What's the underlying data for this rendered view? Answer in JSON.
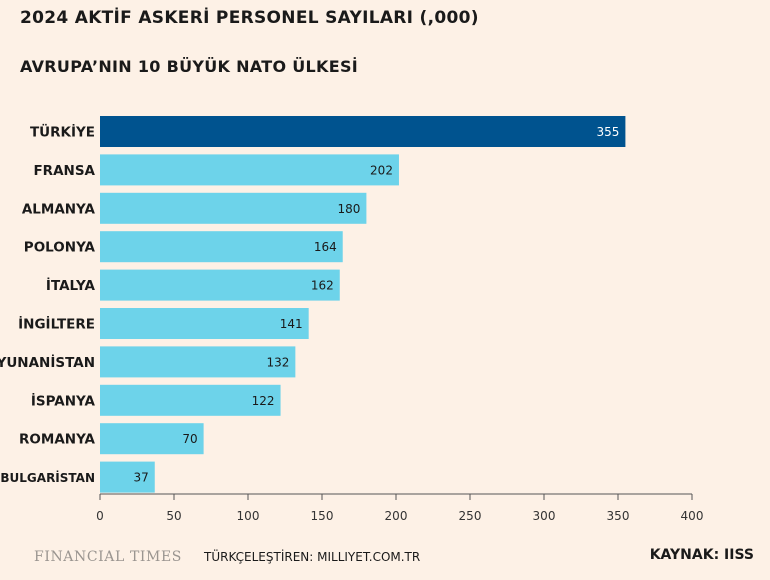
{
  "header": {
    "title": "2024 AKTİF ASKERİ PERSONEL SAYILARI (,000)",
    "subtitle": "AVRUPA’NIN 10 BÜYÜK NATO ÜLKESİ"
  },
  "colors": {
    "background": "#fdf1e6",
    "highlight_bar": "#00538f",
    "bar": "#6dd3ea",
    "axis": "#555555"
  },
  "chart_data": {
    "type": "bar",
    "orientation": "horizontal",
    "categories": [
      "TÜRKİYE",
      "FRANSA",
      "ALMANYA",
      "POLONYA",
      "İTALYA",
      "İNGİLTERE",
      "YUNANİSTAN",
      "İSPANYA",
      "ROMANYA",
      "BULGARİSTAN"
    ],
    "values": [
      355,
      202,
      180,
      164,
      162,
      141,
      132,
      122,
      70,
      37
    ],
    "highlight": "TÜRKİYE",
    "xlim": [
      0,
      400
    ],
    "xticks": [
      0,
      50,
      100,
      150,
      200,
      250,
      300,
      350,
      400
    ],
    "grid": false
  },
  "footer": {
    "publisher": "FINANCIAL TIMES",
    "credit": "TÜRKÇELEŞTİREN: MILLIYET.COM.TR",
    "source": "KAYNAK: IISS"
  }
}
